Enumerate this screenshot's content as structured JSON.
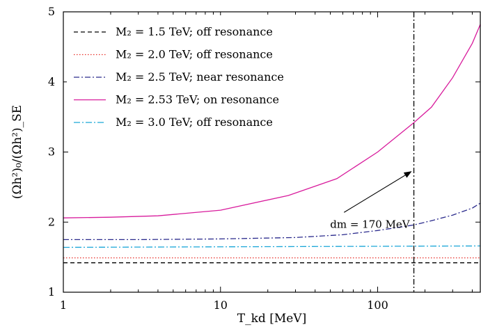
{
  "chart_data": {
    "type": "line",
    "xscale": "log",
    "xlim": [
      1,
      450
    ],
    "ylim": [
      1,
      5
    ],
    "xticks": [
      {
        "value": 1,
        "label": "1"
      },
      {
        "value": 10,
        "label": "10"
      },
      {
        "value": 100,
        "label": "100"
      }
    ],
    "yticks": [
      {
        "value": 1,
        "label": "1"
      },
      {
        "value": 2,
        "label": "2"
      },
      {
        "value": 3,
        "label": "3"
      },
      {
        "value": 4,
        "label": "4"
      },
      {
        "value": 5,
        "label": "5"
      }
    ],
    "xlabel": "T_kd [MeV]",
    "ylabel": "(Ωh²)₀/(Ωh²)_SE",
    "legend_position": "top-left",
    "series": [
      {
        "name": "M₂ = 1.5 TeV; off resonance",
        "color": "#000000",
        "dash": "6,4",
        "x": [
          1,
          450
        ],
        "y": [
          1.42,
          1.42
        ]
      },
      {
        "name": "M₂ = 2.0 TeV; off resonance",
        "color": "#e8302a",
        "dash": "1.5,2.5",
        "x": [
          1,
          450
        ],
        "y": [
          1.49,
          1.49
        ]
      },
      {
        "name": "M₂ = 2.5 TeV; near resonance",
        "color": "#2a2a8c",
        "dash": "8,3,2,3",
        "x": [
          1,
          3,
          10,
          30,
          60,
          100,
          150,
          170,
          220,
          300,
          400,
          450
        ],
        "y": [
          1.75,
          1.75,
          1.76,
          1.78,
          1.82,
          1.88,
          1.94,
          1.96,
          2.02,
          2.1,
          2.2,
          2.27
        ]
      },
      {
        "name": "M₂ = 2.53 TeV; on resonance",
        "color": "#d81b9c",
        "dash": "",
        "x": [
          1,
          2,
          4,
          10,
          27,
          55,
          100,
          170,
          220,
          300,
          400,
          450
        ],
        "y": [
          2.06,
          2.07,
          2.09,
          2.17,
          2.38,
          2.62,
          3.0,
          3.42,
          3.64,
          4.06,
          4.55,
          4.82
        ]
      },
      {
        "name": "M₂ = 3.0 TeV; off resonance",
        "color": "#1aa6d8",
        "dash": "9,3,2,3",
        "x": [
          1,
          450
        ],
        "y": [
          1.64,
          1.66
        ]
      }
    ],
    "vline": {
      "x": 170
    },
    "annotation": {
      "text": "dm = 170 MeV",
      "x": 45,
      "y": 2.0,
      "arrow_to_x": 170,
      "arrow_to_y": 2.72
    }
  }
}
